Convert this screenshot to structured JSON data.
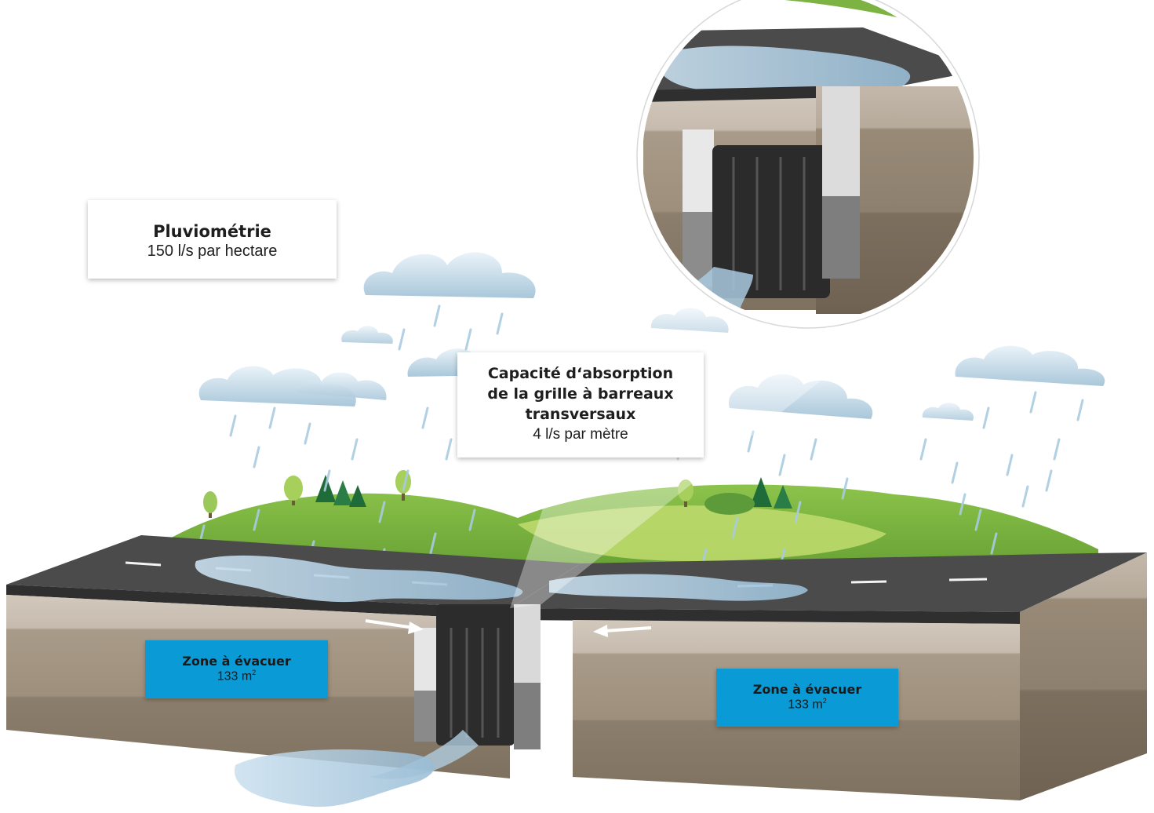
{
  "colors": {
    "sky_rain": "#9fc5dd",
    "grass_dark": "#7cb342",
    "grass_light": "#b9d76a",
    "asphalt": "#4a4a4a",
    "soil_top": "#c9bfb3",
    "soil_mid": "#a89a88",
    "soil_bottom": "#8a7c6a",
    "water": "#b7d3e6",
    "zone_blue": "#0a9ad6"
  },
  "rainfall": {
    "title": "Pluviométrie",
    "value": "150 l/s par hectare"
  },
  "grate_capacity": {
    "title_line1": "Capacité d‘absorption",
    "title_line2": "de la grille à barreaux",
    "title_line3": "transversaux",
    "value": "4 l/s par mètre"
  },
  "zone_left": {
    "title": "Zone à évacuer",
    "area_value": "133 m",
    "area_sup": "2"
  },
  "zone_right": {
    "title": "Zone à évacuer",
    "area_value": "133 m",
    "area_sup": "2"
  },
  "icons": {
    "flow_arrow_left": "arrow-right-icon",
    "flow_arrow_right": "arrow-left-icon",
    "cloud": "cloud-icon",
    "tree": "tree-icon",
    "rain": "raindrop-icon"
  }
}
